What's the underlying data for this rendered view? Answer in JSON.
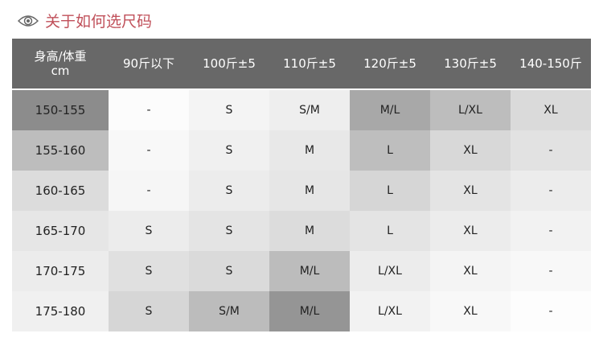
{
  "title": {
    "icon": "eye-icon",
    "text": "关于如何选尺码",
    "color": "#c0505a"
  },
  "table": {
    "header_line1": "身高/体重",
    "header_line2": "cm",
    "columns": [
      "90斤以下",
      "100斤±5",
      "110斤±5",
      "120斤±5",
      "130斤±5",
      "140-150斤"
    ],
    "rows": [
      {
        "height": "150-155",
        "cells": [
          "-",
          "S",
          "S/M",
          "M/L",
          "L/XL",
          "XL"
        ]
      },
      {
        "height": "155-160",
        "cells": [
          "-",
          "S",
          "M",
          "L",
          "XL",
          "-"
        ]
      },
      {
        "height": "160-165",
        "cells": [
          "-",
          "S",
          "M",
          "L",
          "XL",
          "-"
        ]
      },
      {
        "height": "165-170",
        "cells": [
          "S",
          "S",
          "M",
          "L",
          "XL",
          "-"
        ]
      },
      {
        "height": "170-175",
        "cells": [
          "S",
          "S",
          "M/L",
          "L/XL",
          "XL",
          "-"
        ]
      },
      {
        "height": "175-180",
        "cells": [
          "S",
          "S/M",
          "M/L",
          "L/XL",
          "XL",
          "-"
        ]
      }
    ],
    "header_bg": "#686868"
  }
}
